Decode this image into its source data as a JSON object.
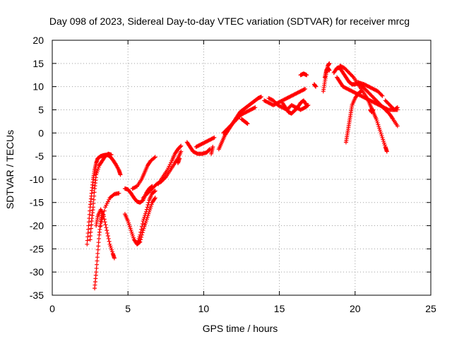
{
  "chart_data": {
    "type": "scatter",
    "title": "Day 098 of 2023, Sidereal Day-to-day VTEC variation (SDTVAR) for receiver mrcg",
    "xlabel": "GPS time / hours",
    "ylabel": "SDTVAR / TECUs",
    "xlim": [
      0,
      25
    ],
    "ylim": [
      -35,
      20
    ],
    "xticks": [
      0,
      5,
      10,
      15,
      20,
      25
    ],
    "yticks": [
      -35,
      -30,
      -25,
      -20,
      -15,
      -10,
      -5,
      0,
      5,
      10,
      15,
      20
    ],
    "grid": true,
    "marker": "+",
    "color": "#ff0000",
    "series": [
      {
        "points": [
          [
            2.3,
            -24
          ],
          [
            2.4,
            -20
          ],
          [
            2.5,
            -16
          ],
          [
            2.6,
            -13
          ],
          [
            2.7,
            -10
          ],
          [
            2.8,
            -8
          ],
          [
            2.9,
            -6.5
          ],
          [
            3.0,
            -5.5
          ],
          [
            3.2,
            -5
          ],
          [
            3.4,
            -4.8
          ],
          [
            3.6,
            -4.7
          ],
          [
            3.8,
            -5
          ],
          [
            4.0,
            -5.8
          ],
          [
            4.2,
            -6.8
          ],
          [
            4.4,
            -8
          ],
          [
            4.5,
            -9
          ]
        ]
      },
      {
        "points": [
          [
            2.5,
            -23
          ],
          [
            2.6,
            -19
          ],
          [
            2.7,
            -16
          ],
          [
            2.8,
            -12
          ],
          [
            2.9,
            -9
          ],
          [
            3.1,
            -7
          ],
          [
            3.3,
            -6
          ],
          [
            3.5,
            -5
          ],
          [
            3.7,
            -4.5
          ],
          [
            3.9,
            -4.7
          ]
        ]
      },
      {
        "points": [
          [
            2.9,
            -20
          ],
          [
            3.0,
            -18
          ],
          [
            3.2,
            -16.5
          ],
          [
            3.4,
            -18
          ],
          [
            3.6,
            -21
          ],
          [
            3.8,
            -24
          ],
          [
            4.0,
            -26
          ],
          [
            4.1,
            -27
          ]
        ]
      },
      {
        "points": [
          [
            2.8,
            -33.5
          ],
          [
            2.9,
            -30
          ],
          [
            3.0,
            -26
          ],
          [
            3.1,
            -22
          ],
          [
            3.2,
            -19
          ],
          [
            3.3,
            -17
          ]
        ]
      },
      {
        "points": [
          [
            3.2,
            -20
          ],
          [
            3.5,
            -16
          ],
          [
            3.8,
            -14
          ],
          [
            4.1,
            -13.2
          ],
          [
            4.4,
            -13
          ]
        ]
      },
      {
        "points": [
          [
            4.8,
            -12
          ],
          [
            5.0,
            -12.2
          ],
          [
            5.2,
            -13
          ],
          [
            5.4,
            -14
          ],
          [
            5.6,
            -14.8
          ],
          [
            5.8,
            -15
          ],
          [
            6.0,
            -14.5
          ],
          [
            6.2,
            -13
          ],
          [
            6.4,
            -12
          ],
          [
            6.6,
            -11.5
          ]
        ]
      },
      {
        "points": [
          [
            4.8,
            -17.5
          ],
          [
            5.0,
            -19
          ],
          [
            5.2,
            -21
          ],
          [
            5.4,
            -23
          ],
          [
            5.6,
            -24
          ],
          [
            5.8,
            -23.5
          ],
          [
            6.0,
            -21
          ],
          [
            6.2,
            -19
          ],
          [
            6.4,
            -17
          ],
          [
            6.6,
            -15
          ],
          [
            6.8,
            -14
          ]
        ]
      },
      {
        "points": [
          [
            5.6,
            -24
          ],
          [
            5.8,
            -22
          ],
          [
            6.0,
            -19
          ],
          [
            6.2,
            -17
          ],
          [
            6.4,
            -14.5
          ],
          [
            6.6,
            -13
          ],
          [
            6.8,
            -12.5
          ]
        ]
      },
      {
        "points": [
          [
            5.3,
            -12
          ],
          [
            5.6,
            -11.5
          ],
          [
            5.9,
            -10
          ],
          [
            6.1,
            -8.5
          ],
          [
            6.3,
            -7
          ],
          [
            6.5,
            -6
          ],
          [
            6.8,
            -5.2
          ]
        ]
      },
      {
        "points": [
          [
            6.0,
            -14
          ],
          [
            6.3,
            -13
          ],
          [
            6.6,
            -12
          ],
          [
            6.9,
            -11
          ],
          [
            7.2,
            -10.5
          ],
          [
            7.5,
            -9.5
          ],
          [
            7.8,
            -8
          ],
          [
            8.1,
            -6.5
          ],
          [
            8.3,
            -5.5
          ],
          [
            8.5,
            -4
          ]
        ]
      },
      {
        "points": [
          [
            7.0,
            -11
          ],
          [
            7.3,
            -9.5
          ],
          [
            7.6,
            -8
          ],
          [
            7.9,
            -6
          ],
          [
            8.1,
            -4.5
          ],
          [
            8.3,
            -3.5
          ],
          [
            8.5,
            -2.8
          ]
        ]
      },
      {
        "points": [
          [
            8.3,
            -6.5
          ],
          [
            8.4,
            -5.5
          ]
        ]
      },
      {
        "points": [
          [
            8.9,
            -2
          ],
          [
            9.1,
            -3
          ],
          [
            9.3,
            -4
          ],
          [
            9.6,
            -4.5
          ],
          [
            9.9,
            -4.5
          ],
          [
            10.2,
            -4.2
          ],
          [
            10.4,
            -3.5
          ]
        ]
      },
      {
        "points": [
          [
            9.5,
            -3
          ],
          [
            9.8,
            -2.5
          ],
          [
            10.1,
            -2
          ],
          [
            10.4,
            -1.5
          ],
          [
            10.7,
            -1
          ]
        ]
      },
      {
        "points": [
          [
            10.5,
            -4.5
          ],
          [
            10.6,
            -3
          ]
        ]
      },
      {
        "points": [
          [
            11.0,
            -3.5
          ],
          [
            11.2,
            -2
          ],
          [
            11.4,
            -0.5
          ],
          [
            11.6,
            0.5
          ],
          [
            11.8,
            1.5
          ],
          [
            12.0,
            2.5
          ],
          [
            12.2,
            3.5
          ],
          [
            12.4,
            4.5
          ],
          [
            12.6,
            5
          ],
          [
            12.8,
            5.5
          ],
          [
            13.0,
            6
          ],
          [
            13.2,
            6.5
          ],
          [
            13.4,
            7
          ],
          [
            13.6,
            7.5
          ],
          [
            13.8,
            7.8
          ]
        ]
      },
      {
        "points": [
          [
            11.3,
            0
          ],
          [
            11.6,
            1
          ],
          [
            11.9,
            2
          ],
          [
            12.2,
            3
          ],
          [
            12.5,
            4
          ],
          [
            12.8,
            4.5
          ],
          [
            13.1,
            5
          ],
          [
            13.4,
            5.5
          ]
        ]
      },
      {
        "points": [
          [
            12.5,
            3
          ],
          [
            12.7,
            2.5
          ],
          [
            12.9,
            2
          ]
        ]
      },
      {
        "points": [
          [
            14.0,
            7
          ],
          [
            14.3,
            6.5
          ],
          [
            14.6,
            6
          ],
          [
            14.9,
            6.5
          ],
          [
            15.2,
            7
          ],
          [
            15.5,
            7.5
          ],
          [
            15.8,
            8
          ],
          [
            16.1,
            8.5
          ],
          [
            16.4,
            9
          ],
          [
            16.7,
            9.5
          ]
        ]
      },
      {
        "points": [
          [
            14.3,
            7.5
          ],
          [
            14.6,
            7
          ],
          [
            14.9,
            6
          ],
          [
            15.2,
            5.5
          ],
          [
            15.5,
            5
          ],
          [
            15.8,
            6
          ],
          [
            16.1,
            5.5
          ],
          [
            16.4,
            5
          ],
          [
            16.7,
            5.5
          ],
          [
            16.9,
            6
          ]
        ]
      },
      {
        "points": [
          [
            15.2,
            6.5
          ],
          [
            15.4,
            5.5
          ],
          [
            15.6,
            4.5
          ],
          [
            15.8,
            4.2
          ],
          [
            16.0,
            4.8
          ],
          [
            16.2,
            5.5
          ],
          [
            16.4,
            6.5
          ],
          [
            16.6,
            7
          ],
          [
            16.8,
            6
          ]
        ]
      },
      {
        "points": [
          [
            16.4,
            12.5
          ],
          [
            16.6,
            12.8
          ],
          [
            16.8,
            12.5
          ]
        ]
      },
      {
        "points": [
          [
            17.3,
            10.5
          ],
          [
            17.4,
            10
          ]
        ]
      },
      {
        "points": [
          [
            17.9,
            9
          ],
          [
            18.0,
            11
          ],
          [
            18.1,
            13
          ],
          [
            18.2,
            14.5
          ],
          [
            18.3,
            15
          ]
        ]
      },
      {
        "points": [
          [
            18.0,
            12
          ],
          [
            18.1,
            13.5
          ],
          [
            18.2,
            14
          ],
          [
            18.3,
            13.5
          ]
        ]
      },
      {
        "points": [
          [
            18.6,
            13
          ],
          [
            18.8,
            14
          ],
          [
            19.0,
            14
          ],
          [
            19.2,
            13
          ],
          [
            19.4,
            12
          ],
          [
            19.6,
            11
          ],
          [
            19.8,
            10.5
          ],
          [
            20.0,
            10.5
          ],
          [
            20.3,
            10.8
          ],
          [
            20.6,
            10.5
          ],
          [
            20.9,
            10
          ],
          [
            21.2,
            9.5
          ],
          [
            21.5,
            9
          ],
          [
            21.8,
            8
          ]
        ]
      },
      {
        "points": [
          [
            18.8,
            12
          ],
          [
            19.0,
            11
          ],
          [
            19.2,
            10
          ],
          [
            19.5,
            9.5
          ],
          [
            19.8,
            9
          ],
          [
            20.1,
            8.5
          ],
          [
            20.4,
            8
          ],
          [
            20.7,
            7.5
          ],
          [
            21.0,
            7
          ],
          [
            21.3,
            6.5
          ],
          [
            21.6,
            6
          ],
          [
            21.9,
            5.5
          ],
          [
            22.2,
            5
          ],
          [
            22.5,
            5
          ],
          [
            22.8,
            5
          ]
        ]
      },
      {
        "points": [
          [
            19.4,
            -2
          ],
          [
            19.5,
            0
          ],
          [
            19.6,
            2
          ],
          [
            19.7,
            4
          ],
          [
            19.8,
            6
          ],
          [
            20.0,
            7.5
          ],
          [
            20.2,
            8.5
          ],
          [
            20.4,
            9
          ]
        ]
      },
      {
        "points": [
          [
            19.0,
            14.5
          ],
          [
            19.3,
            14
          ],
          [
            19.6,
            13
          ],
          [
            19.9,
            12
          ],
          [
            20.2,
            10.5
          ],
          [
            20.5,
            9
          ],
          [
            20.8,
            7.5
          ],
          [
            21.0,
            6
          ],
          [
            21.2,
            4.5
          ],
          [
            21.4,
            3
          ],
          [
            21.6,
            1
          ],
          [
            21.8,
            -1
          ],
          [
            22.0,
            -3
          ],
          [
            22.1,
            -4
          ]
        ]
      },
      {
        "points": [
          [
            20.2,
            11
          ],
          [
            20.5,
            10
          ],
          [
            20.8,
            9
          ],
          [
            21.1,
            8
          ],
          [
            21.4,
            7
          ],
          [
            21.7,
            6
          ],
          [
            22.0,
            5
          ],
          [
            22.3,
            4
          ],
          [
            22.5,
            3
          ],
          [
            22.8,
            1.5
          ]
        ]
      },
      {
        "points": [
          [
            21.0,
            5
          ],
          [
            21.1,
            4.5
          ],
          [
            21.2,
            5
          ]
        ]
      },
      {
        "points": [
          [
            22.0,
            7
          ],
          [
            22.3,
            6
          ],
          [
            22.6,
            5
          ],
          [
            22.8,
            5.5
          ]
        ]
      }
    ]
  }
}
